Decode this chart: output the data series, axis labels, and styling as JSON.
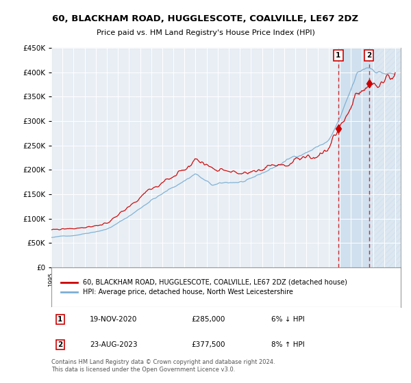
{
  "title": "60, BLACKHAM ROAD, HUGGLESCOTE, COALVILLE, LE67 2DZ",
  "subtitle": "Price paid vs. HM Land Registry's House Price Index (HPI)",
  "line1_label": "60, BLACKHAM ROAD, HUGGLESCOTE, COALVILLE, LE67 2DZ (detached house)",
  "line1_color": "#cc0000",
  "line2_label": "HPI: Average price, detached house, North West Leicestershire",
  "line2_color": "#7bafd4",
  "annotation1_num": "1",
  "annotation1_date": "19-NOV-2020",
  "annotation1_price": "£285,000",
  "annotation1_pct": "6% ↓ HPI",
  "annotation1_year": 2020.87,
  "annotation1_value": 285000,
  "annotation2_num": "2",
  "annotation2_date": "23-AUG-2023",
  "annotation2_price": "£377,500",
  "annotation2_pct": "8% ↑ HPI",
  "annotation2_year": 2023.64,
  "annotation2_value": 377500,
  "footnote": "Contains HM Land Registry data © Crown copyright and database right 2024.\nThis data is licensed under the Open Government Licence v3.0.",
  "ylim_min": 0,
  "ylim_max": 450000,
  "xlim_min": 1995,
  "xlim_max": 2026.5,
  "background_color": "#ffffff",
  "plot_bg_color": "#e8eef4",
  "grid_color": "#ffffff",
  "shade_color": "#ccdded",
  "hatch_color": "#b0c8dc"
}
